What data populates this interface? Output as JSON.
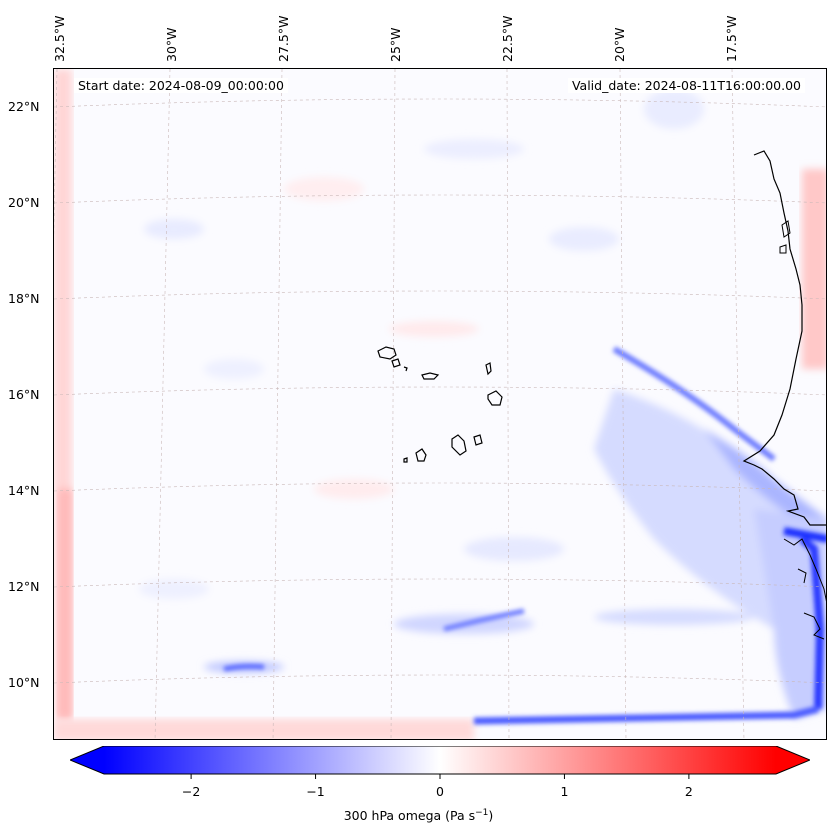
{
  "header": {
    "start_date": "Start date: 2024-08-09_00:00:00",
    "valid_date": "Valid_date: 2024-08-11T16:00:00.00"
  },
  "map": {
    "variable": "300 hPa omega",
    "projection_grid": "dashed lat/lon graticule",
    "lon_labels": [
      "32.5°W",
      "30°W",
      "27.5°W",
      "25°W",
      "22.5°W",
      "20°W",
      "17.5°W"
    ],
    "lat_labels": [
      "22°N",
      "20°N",
      "18°N",
      "16°N",
      "14°N",
      "12°N",
      "10°N"
    ],
    "features": [
      "Cabo Verde islands",
      "West African coastline (Senegal/Mauritania/Guinea-Bissau)"
    ]
  },
  "colorbar": {
    "label_text": "300 hPa omega (Pa s",
    "label_exp": "−1",
    "label_close": ")",
    "range": [
      -2.7,
      2.7
    ],
    "cmap": "bwr",
    "min_color": "#0000ff",
    "mid_color": "#ffffff",
    "max_color": "#ff0000",
    "ticks": [
      "−2",
      "−1",
      "0",
      "1",
      "2"
    ],
    "tick_values": [
      -2,
      -1,
      0,
      1,
      2
    ]
  }
}
